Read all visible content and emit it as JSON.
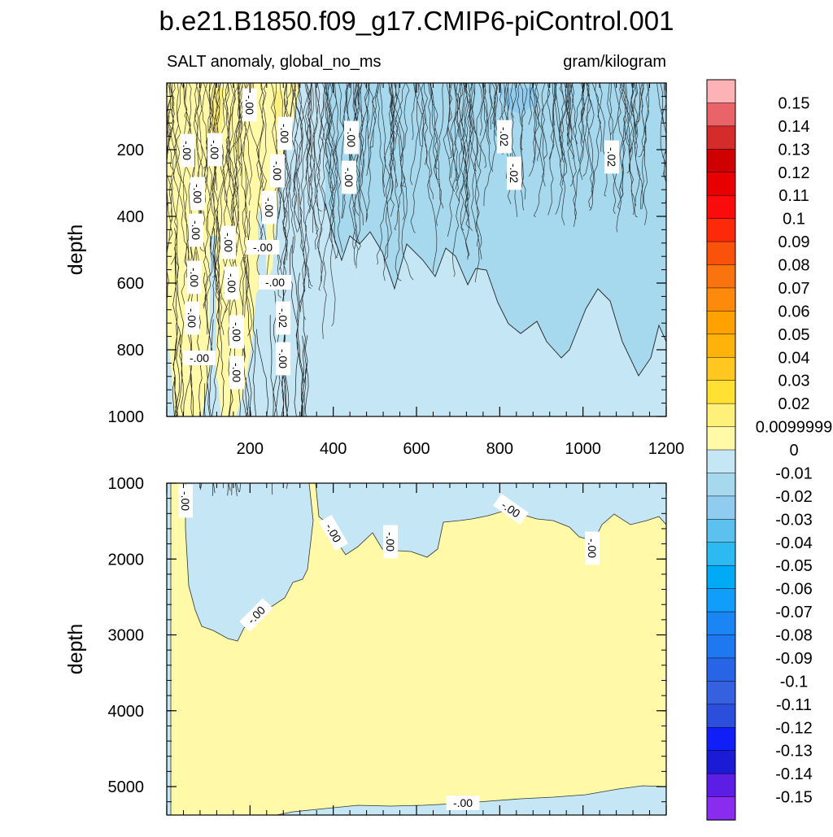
{
  "chart_data": {
    "type": "contour",
    "title": "b.e21.B1850.f09_g17.CMIP6-piControl.001",
    "subtitle_left": "SALT anomaly, global_no_ms",
    "subtitle_right": "gram/kilogram",
    "ylabel": "depth",
    "xlim": [
      0,
      1200
    ],
    "x_ticks": [
      200,
      400,
      600,
      800,
      1000,
      1200
    ],
    "upper_panel": {
      "ylim": [
        0,
        1000
      ],
      "y_ticks": [
        200,
        400,
        600,
        800,
        1000
      ],
      "contour_labels": [
        "-.00",
        "-.00",
        "-.00",
        "-.00",
        "-.00",
        "-.00",
        "-.00",
        "-.00",
        "-.00",
        "-.00",
        "-.00",
        "-.00",
        "-.00",
        "-.00",
        "-.00",
        "-.00",
        "-.00",
        "-.02",
        "-.02",
        "-.02"
      ]
    },
    "lower_panel": {
      "ylim": [
        1000,
        5375
      ],
      "y_ticks": [
        1000,
        2000,
        3000,
        4000,
        5000
      ],
      "contour_labels": [
        "-.00",
        "-.00",
        "-.00",
        "-.00",
        "-.00",
        "-.00"
      ]
    },
    "colorbar": {
      "labels": [
        "0.15",
        "0.14",
        "0.13",
        "0.12",
        "0.11",
        "0.1",
        "0.09",
        "0.08",
        "0.07",
        "0.06",
        "0.05",
        "0.04",
        "0.03",
        "0.02",
        "0.0099999",
        "0",
        "-0.01",
        "-0.02",
        "-0.03",
        "-0.04",
        "-0.05",
        "-0.06",
        "-0.07",
        "-0.08",
        "-0.09",
        "-0.1",
        "-0.11",
        "-0.12",
        "-0.13",
        "-0.14",
        "-0.15"
      ],
      "colors": [
        "#fdb3b5",
        "#e86468",
        "#d42b2b",
        "#d10000",
        "#e80000",
        "#fb0c0c",
        "#fd2a0a",
        "#fb520b",
        "#f9740c",
        "#fd8a0a",
        "#ffa200",
        "#ffb20a",
        "#ffc71f",
        "#ffe033",
        "#fff07a",
        "#fff9a8",
        "#c4e6f5",
        "#a6d8ee",
        "#8fccf0",
        "#5dc1f0",
        "#2dbaf3",
        "#00aaf5",
        "#119dfa",
        "#1a85f3",
        "#1e78f0",
        "#2865e6",
        "#3561e0",
        "#2b4fdc",
        "#0f1ff5",
        "#1b1bd6",
        "#5c1de4",
        "#8a2bf0"
      ]
    }
  }
}
